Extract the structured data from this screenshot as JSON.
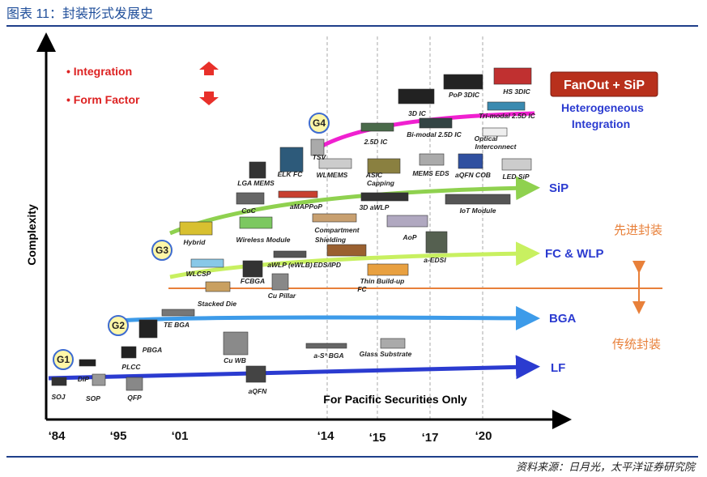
{
  "header": {
    "title": "图表 11：封装形式发展史"
  },
  "legend": [
    "Integration",
    "Form Factor"
  ],
  "axis": {
    "y_label": "Complexity",
    "x_labels": [
      "‘84",
      "‘95",
      "‘01",
      "‘14",
      "‘15",
      "‘17",
      "‘20"
    ]
  },
  "generations": [
    "G1",
    "G2",
    "G3",
    "G4"
  ],
  "trends": [
    "LF",
    "BGA",
    "FC & WLP",
    "SiP"
  ],
  "highlight": {
    "badge": "FanOut + SiP",
    "caption": [
      "Heterogeneous",
      "Integration"
    ]
  },
  "zones": [
    "先进封装",
    "传统封装"
  ],
  "watermark": "For Pacific Securities Only",
  "packages": [
    "SOJ",
    "DIP",
    "SOP",
    "PLCC",
    "QFP",
    "PBGA",
    "TE BGA",
    "Cu WB",
    "aQFN",
    "a-S³ BGA",
    "Glass Substrate",
    "Stacked Die",
    "Cu Pillar",
    "FCBGA",
    "WLCSP",
    "Hybrid",
    "CoC",
    "Wireless Module",
    "aMAPPoP",
    "LGA MEMS",
    "ELK FC",
    "TSV",
    "WLMEMS",
    "Compartment",
    "Shielding",
    "aWLP (eWLB)",
    "EDS/IPD",
    "Thin Build-up",
    "FC",
    "AoP",
    "a-EDSI",
    "3D aWLP",
    "ASIC",
    "Capping",
    "MEMS EDS",
    "aQFN COB",
    "LED SiP",
    "IoT Module",
    "2.5D IC",
    "3D IC",
    "Bi-modal 2.5D IC",
    "PoP 3DIC",
    "HS 3DIC",
    "Tri-modal 2.5D IC",
    "Optical",
    "Interconnect"
  ],
  "footer": {
    "source": "资料来源：日月光，太平洋证券研究院"
  }
}
